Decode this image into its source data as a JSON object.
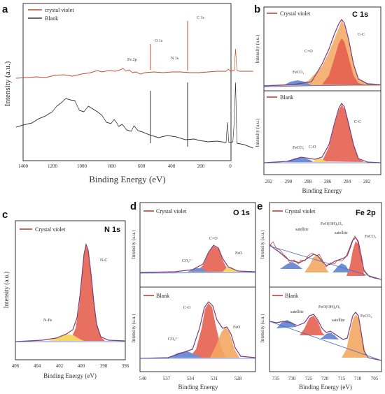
{
  "colors": {
    "envelope": "#7a3d78",
    "raw": "#b7342e",
    "baseline": "#4a67c7",
    "main_fill": "#e6604f",
    "secondary_fill": "#f2a760",
    "minor_fill": "#f6d766",
    "blue_fill": "#6e8fd5",
    "survey_cv": "#c24b2a",
    "survey_blank": "#333333"
  },
  "chart_data": [
    {
      "panel": "a",
      "type": "line",
      "xlabel": "Binding Energy (eV)",
      "ylabel": "Intensity (a.u.)",
      "xlim": [
        1400,
        0
      ],
      "xticks": [
        "1400",
        "1200",
        "1000",
        "800",
        "600",
        "400",
        "200",
        "0"
      ],
      "series": [
        {
          "name": "crystal violet",
          "x": [
            1400,
            1200,
            1000,
            800,
            720,
            710,
            700,
            600,
            540,
            531,
            520,
            400,
            290,
            285,
            280,
            200,
            0
          ],
          "y": [
            0.71,
            0.72,
            0.74,
            0.73,
            0.72,
            0.76,
            0.73,
            0.72,
            0.72,
            0.83,
            0.71,
            0.73,
            0.71,
            1.0,
            0.68,
            0.66,
            0.64
          ]
        },
        {
          "name": "Blank",
          "x": [
            1400,
            1200,
            1000,
            900,
            800,
            720,
            710,
            700,
            600,
            540,
            531,
            520,
            400,
            290,
            285,
            280,
            200,
            0
          ],
          "y": [
            0.36,
            0.4,
            0.47,
            0.49,
            0.43,
            0.34,
            0.36,
            0.33,
            0.32,
            0.32,
            0.6,
            0.31,
            0.33,
            0.31,
            0.55,
            0.29,
            0.28,
            0.26
          ]
        }
      ],
      "annotations": [
        "Fe 2p",
        "O 1s",
        "N 1s",
        "C 1s"
      ]
    },
    {
      "panel": "b",
      "type": "area",
      "title": "C 1s",
      "xlabel": "Binding Energy",
      "ylabel": "Intensity (a.u.)",
      "xlim": [
        292,
        282
      ],
      "xticks": [
        "292",
        "290",
        "288",
        "286",
        "284",
        "282"
      ],
      "subplots": [
        {
          "legend": "Crystal violet",
          "components": [
            {
              "name": "C-C",
              "center": 284.8,
              "height": 0.8
            },
            {
              "name": "C=O",
              "center": 285.8,
              "height": 0.5
            },
            {
              "name": "FeCO3",
              "center": 288.5,
              "height": 0.07
            }
          ]
        },
        {
          "legend": "Blank",
          "components": [
            {
              "name": "C-C",
              "center": 284.8,
              "height": 0.85
            },
            {
              "name": "C-O",
              "center": 286.5,
              "height": 0.06
            },
            {
              "name": "FeCO3",
              "center": 288.4,
              "height": 0.08
            }
          ]
        }
      ]
    },
    {
      "panel": "c",
      "type": "area",
      "title": "N 1s",
      "xlabel": "Binding Energy (eV)",
      "ylabel": "Intensity (a.u.)",
      "xlim": [
        406,
        396
      ],
      "xticks": [
        "406",
        "404",
        "402",
        "400",
        "398",
        "396"
      ],
      "legend": "Crystal violet",
      "components": [
        {
          "name": "N-C",
          "center": 399.6,
          "height": 0.88
        },
        {
          "name": "N-Fe",
          "center": 401.2,
          "height": 0.08
        }
      ]
    },
    {
      "panel": "d",
      "type": "area",
      "title": "O 1s",
      "xlabel": "Binding Energy",
      "ylabel": "Intensity (a.u.)",
      "xlim": [
        540,
        526
      ],
      "xticks": [
        "540",
        "537",
        "534",
        "531",
        "528"
      ],
      "subplots": [
        {
          "legend": "Crystal violet",
          "components": [
            {
              "name": "C=O",
              "center": 531.3,
              "height": 0.45
            },
            {
              "name": "CO32-",
              "center": 532.5,
              "height": 0.08
            },
            {
              "name": "FeO",
              "center": 529.8,
              "height": 0.1
            }
          ]
        },
        {
          "legend": "Blank",
          "components": [
            {
              "name": "C-O",
              "center": 531.7,
              "height": 0.75
            },
            {
              "name": "FeO",
              "center": 530.0,
              "height": 0.45
            },
            {
              "name": "CO32-",
              "center": 532.9,
              "height": 0.1
            }
          ]
        }
      ]
    },
    {
      "panel": "e",
      "type": "area",
      "title": "Fe 2p",
      "xlabel": "Binding Energy (eV)",
      "ylabel": "Intensity (a.u.)",
      "xlim": [
        737,
        703
      ],
      "xticks": [
        "735",
        "730",
        "725",
        "720",
        "715",
        "710",
        "705"
      ],
      "subplots": [
        {
          "legend": "Crystal violet",
          "components": [
            {
              "name": "FeCO3",
              "center": 710.5,
              "height": 0.6
            },
            {
              "name": "FeO(OH)2O3",
              "center": 724.5,
              "height": 0.45
            },
            {
              "name": "satellite",
              "center": 715.5,
              "height": 0.3
            },
            {
              "name": "satellite",
              "center": 731.5,
              "height": 0.2
            }
          ]
        },
        {
          "legend": "Blank",
          "components": [
            {
              "name": "FeCO3",
              "center": 710.5,
              "height": 0.8
            },
            {
              "name": "FeO(OH)2O3",
              "center": 724.5,
              "height": 0.45
            },
            {
              "name": "satellite",
              "center": 719.5,
              "height": 0.15
            },
            {
              "name": "satellite",
              "center": 732.5,
              "height": 0.18
            }
          ]
        }
      ]
    }
  ],
  "labels": {
    "a": "a",
    "b": "b",
    "c": "c",
    "d": "d",
    "e": "e",
    "a_leg1": "crystal violet",
    "a_leg2": "Blank",
    "a_xlabel": "Binding Energy (eV)",
    "a_ylabel": "Intensity (a.u.)",
    "a_fe": "Fe 2p",
    "a_o": "O 1s",
    "a_n": "N 1s",
    "a_c": "C 1s",
    "b_title": "C 1s",
    "b_leg1": "Crystal violet",
    "b_leg2": "Blank",
    "b_xlabel": "Binding Energy",
    "b_ylabel1": "Intensity (a.u.)",
    "b_ylabel2": "Intensity (a.u.)",
    "b_cc1": "C-C",
    "b_co1": "C=O",
    "b_fe1": "FeCO₃",
    "b_cc2": "C-C",
    "b_co2": "C-O",
    "b_fe2": "FeCO₃",
    "c_title": "N 1s",
    "c_leg": "Crystal violet",
    "c_xlabel": "Binding Energy (eV)",
    "c_ylabel": "Intensity (a.u.)",
    "c_nc": "N-C",
    "c_nfe": "N-Fe",
    "d_title": "O 1s",
    "d_leg1": "Crystal violet",
    "d_leg2": "Blank",
    "d_xlabel": "Binding Energy",
    "d_ylabel1": "Intensity (a.u.)",
    "d_ylabel2": "Intensity (a.u.)",
    "d_co1": "C=O",
    "d_co3_1": "CO₃²⁻",
    "d_feo1": "FeO",
    "d_co2": "C-O",
    "d_co3_2": "CO₃²⁻",
    "d_feo2": "FeO",
    "e_title": "Fe 2p",
    "e_leg1": "Crystal violet",
    "e_leg2": "Blank",
    "e_xlabel": "Binding Energy (eV)",
    "e_ylabel1": "Intensity (a.u.)",
    "e_ylabel2": "Intensity (a.u.)",
    "e_sat1": "satellite",
    "e_feo1": "FeO(OH)₂O₃",
    "e_sat2": "satellite",
    "e_feco1": "FeCO₃",
    "e_sat3": "satellite",
    "e_feo2": "FeO(OH)₂O₃",
    "e_sat4": "satellite",
    "e_feco2": "FeCO₃"
  }
}
